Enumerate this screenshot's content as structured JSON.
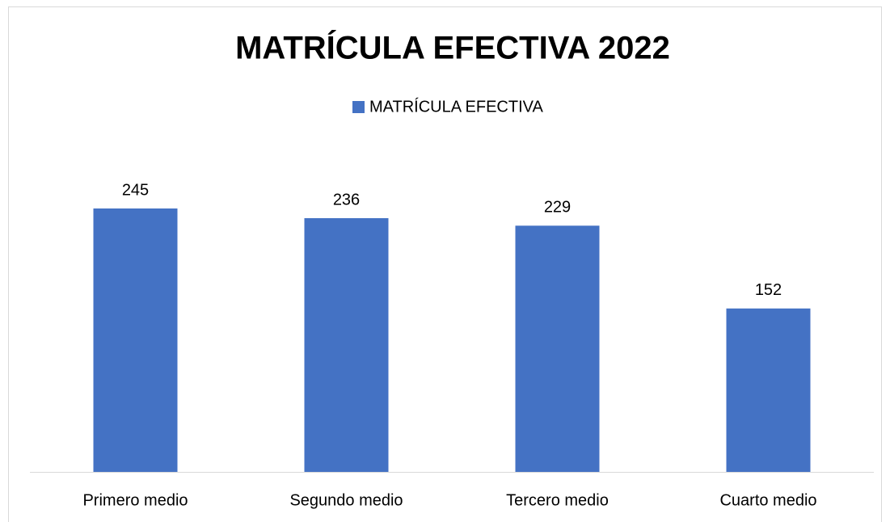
{
  "chart_data": {
    "type": "bar",
    "title": "MATRÍCULA EFECTIVA 2022",
    "categories": [
      "Primero medio",
      "Segundo medio",
      "Tercero medio",
      "Cuarto medio"
    ],
    "series": [
      {
        "name": "MATRÍCULA EFECTIVA",
        "color": "#4472c4",
        "values": [
          245,
          236,
          229,
          152
        ]
      }
    ],
    "legend": "top"
  }
}
